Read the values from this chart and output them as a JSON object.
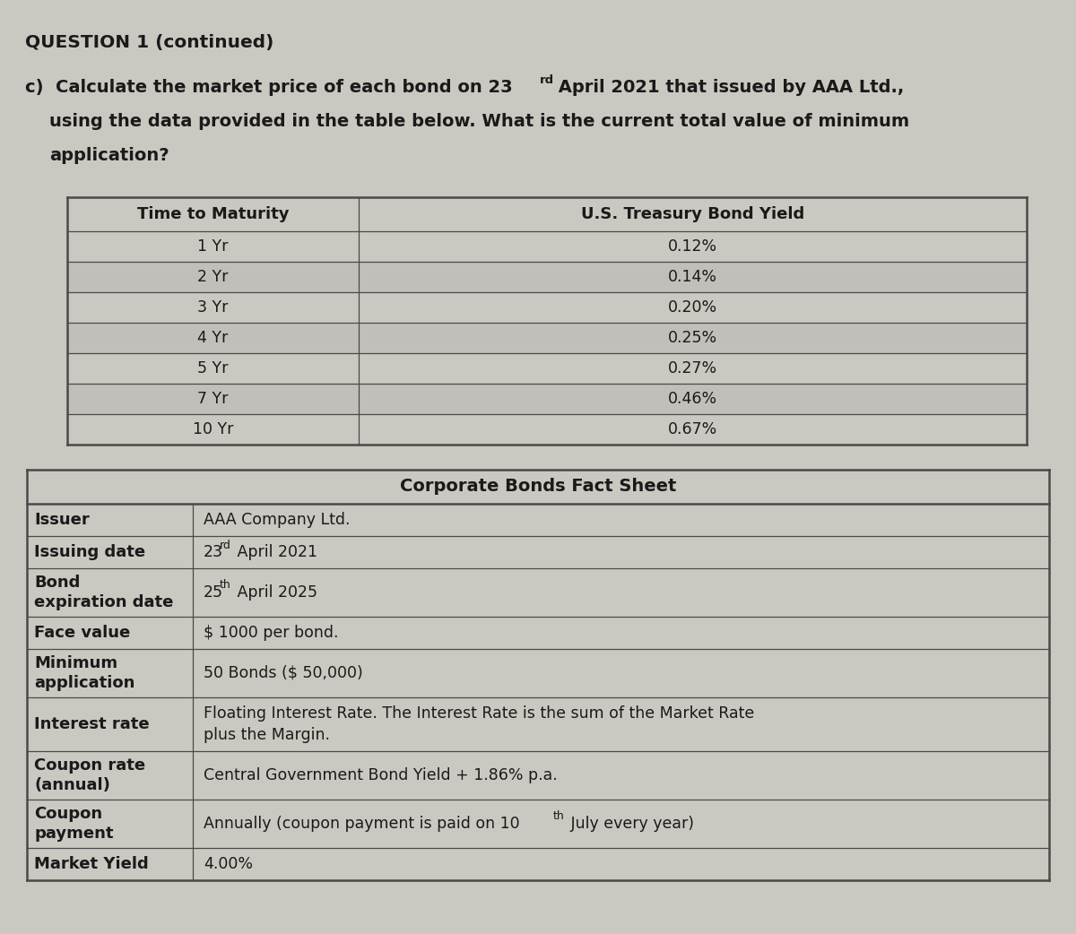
{
  "title_q": "QUESTION 1 (continued)",
  "q_line1_pre": "c)  Calculate the market price of each bond on 23",
  "q_line1_sup": "rd",
  "q_line1_post": " April 2021 that issued by AAA Ltd.,",
  "q_line2": "using the data provided in the table below. What is the current total value of minimum",
  "q_line3": "application?",
  "treasury_headers": [
    "Time to Maturity",
    "U.S. Treasury Bond Yield"
  ],
  "treasury_rows": [
    [
      "1 Yr",
      "0.12%"
    ],
    [
      "2 Yr",
      "0.14%"
    ],
    [
      "3 Yr",
      "0.20%"
    ],
    [
      "4 Yr",
      "0.25%"
    ],
    [
      "5 Yr",
      "0.27%"
    ],
    [
      "7 Yr",
      "0.46%"
    ],
    [
      "10 Yr",
      "0.67%"
    ]
  ],
  "fact_title": "Corporate Bonds Fact Sheet",
  "fact_rows": [
    {
      "label": "Issuer",
      "value": "AAA Company Ltd.",
      "type": "plain"
    },
    {
      "label": "Issuing date",
      "value_pre": "23",
      "value_sup": "rd",
      "value_post": " April 2021",
      "type": "sup"
    },
    {
      "label": "Bond\nexpiration date",
      "value_pre": "25",
      "value_sup": "th",
      "value_post": " April 2025",
      "type": "sup"
    },
    {
      "label": "Face value",
      "value": "$ 1000 per bond.",
      "type": "plain"
    },
    {
      "label": "Minimum\napplication",
      "value": "50 Bonds ($ 50,000)",
      "type": "plain"
    },
    {
      "label": "Interest rate",
      "value": "Floating Interest Rate. The Interest Rate is the sum of the Market Rate\nplus the Margin.",
      "type": "plain"
    },
    {
      "label": "Coupon rate\n(annual)",
      "value": "Central Government Bond Yield + 1.86% p.a.",
      "type": "plain"
    },
    {
      "label": "Coupon\npayment",
      "value_pre": "Annually (coupon payment is paid on 10",
      "value_sup": "th",
      "value_post": " July every year)",
      "type": "sup"
    },
    {
      "label": "Market Yield",
      "value": "4.00%",
      "type": "plain"
    }
  ],
  "bg_color": "#cbc8c2",
  "row_alt_color": "#c2bfba",
  "line_dark": "#4a4a4a",
  "line_mid": "#666666",
  "text_color": "#1a1a1a"
}
